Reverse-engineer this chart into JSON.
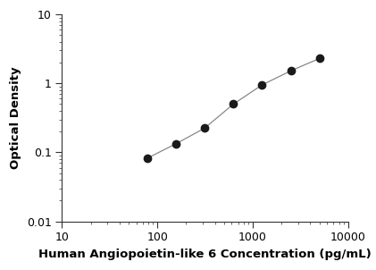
{
  "x": [
    78.125,
    156.25,
    312.5,
    625,
    1250,
    2500,
    5000
  ],
  "y": [
    0.082,
    0.133,
    0.224,
    0.5,
    0.95,
    1.52,
    2.3
  ],
  "xlabel": "Human Angiopoietin-like 6 Concentration (pg/mL)",
  "ylabel": "Optical Density",
  "xlim": [
    10,
    10000
  ],
  "ylim": [
    0.01,
    10
  ],
  "line_color": "#888888",
  "marker_color": "#1a1a1a",
  "marker_size": 6,
  "background_color": "#ffffff",
  "xlabel_fontsize": 9.5,
  "ylabel_fontsize": 9.5,
  "tick_fontsize": 9
}
